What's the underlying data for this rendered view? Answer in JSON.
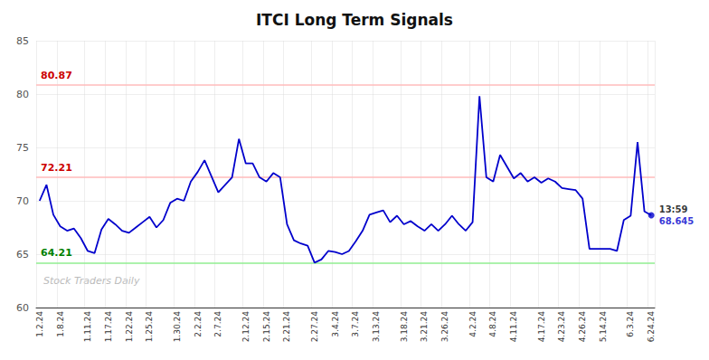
{
  "chart_data": {
    "type": "line",
    "title": "ITCI Long Term Signals",
    "categories": [
      "1.2.24",
      null,
      null,
      "1.8.24",
      null,
      null,
      null,
      "1.11.24",
      null,
      null,
      "1.17.24",
      null,
      null,
      "1.22.24",
      null,
      null,
      "1.25.24",
      null,
      null,
      null,
      "1.30.24",
      null,
      null,
      "2.2.24",
      null,
      null,
      "2.7.24",
      null,
      null,
      null,
      "2.12.24",
      null,
      null,
      "2.15.24",
      null,
      null,
      "2.21.24",
      null,
      null,
      null,
      "2.27.24",
      null,
      null,
      "3.4.24",
      null,
      null,
      "3.7.24",
      null,
      null,
      "3.13.24",
      null,
      null,
      null,
      "3.18.24",
      null,
      null,
      "3.21.24",
      null,
      null,
      "3.26.24",
      null,
      null,
      null,
      "4.2.24",
      null,
      null,
      "4.8.24",
      null,
      null,
      "4.11.24",
      null,
      null,
      null,
      "4.17.24",
      null,
      null,
      "4.23.24",
      null,
      null,
      "4.26.24",
      null,
      null,
      "5.14.24",
      null,
      null,
      null,
      "6.3.24",
      null,
      null,
      "6.24.24"
    ],
    "values": [
      70.0,
      71.5,
      68.7,
      67.6,
      67.2,
      67.4,
      66.5,
      65.3,
      65.1,
      67.3,
      68.3,
      67.8,
      67.2,
      67.0,
      67.5,
      68.0,
      68.5,
      67.5,
      68.2,
      69.8,
      70.2,
      70.0,
      71.8,
      72.7,
      73.8,
      72.3,
      70.8,
      71.5,
      72.2,
      75.8,
      73.5,
      73.5,
      72.2,
      71.8,
      72.6,
      72.2,
      67.8,
      66.3,
      66.0,
      65.8,
      64.2,
      64.5,
      65.3,
      65.2,
      65.0,
      65.3,
      66.2,
      67.2,
      68.7,
      68.9,
      69.1,
      68.0,
      68.6,
      67.8,
      68.1,
      67.6,
      67.2,
      67.8,
      67.2,
      67.8,
      68.6,
      67.8,
      67.2,
      68.0,
      79.8,
      72.2,
      71.8,
      74.3,
      73.2,
      72.1,
      72.6,
      71.8,
      72.2,
      71.7,
      72.1,
      71.8,
      71.2,
      71.1,
      71.0,
      70.2,
      65.5,
      65.5,
      65.5,
      65.5,
      65.3,
      68.2,
      68.6,
      75.5,
      69.0,
      68.645
    ],
    "color": "#0000cc",
    "reference_lines": [
      {
        "value": 80.87,
        "color": "#ffbbbb",
        "label_color": "#cc0000"
      },
      {
        "value": 72.21,
        "color": "#ffbbbb",
        "label_color": "#cc0000"
      },
      {
        "value": 64.21,
        "color": "#90ee90",
        "label_color": "#008000"
      }
    ],
    "last_point": {
      "value": 68.645,
      "time_label": "13:59",
      "color": "#0000cc"
    },
    "watermark": "Stock Traders Daily",
    "watermark_color": "#bbbbbb",
    "ylim": [
      60,
      85
    ],
    "yticks": [
      60,
      65,
      70,
      75,
      80,
      85
    ],
    "grid": true
  }
}
